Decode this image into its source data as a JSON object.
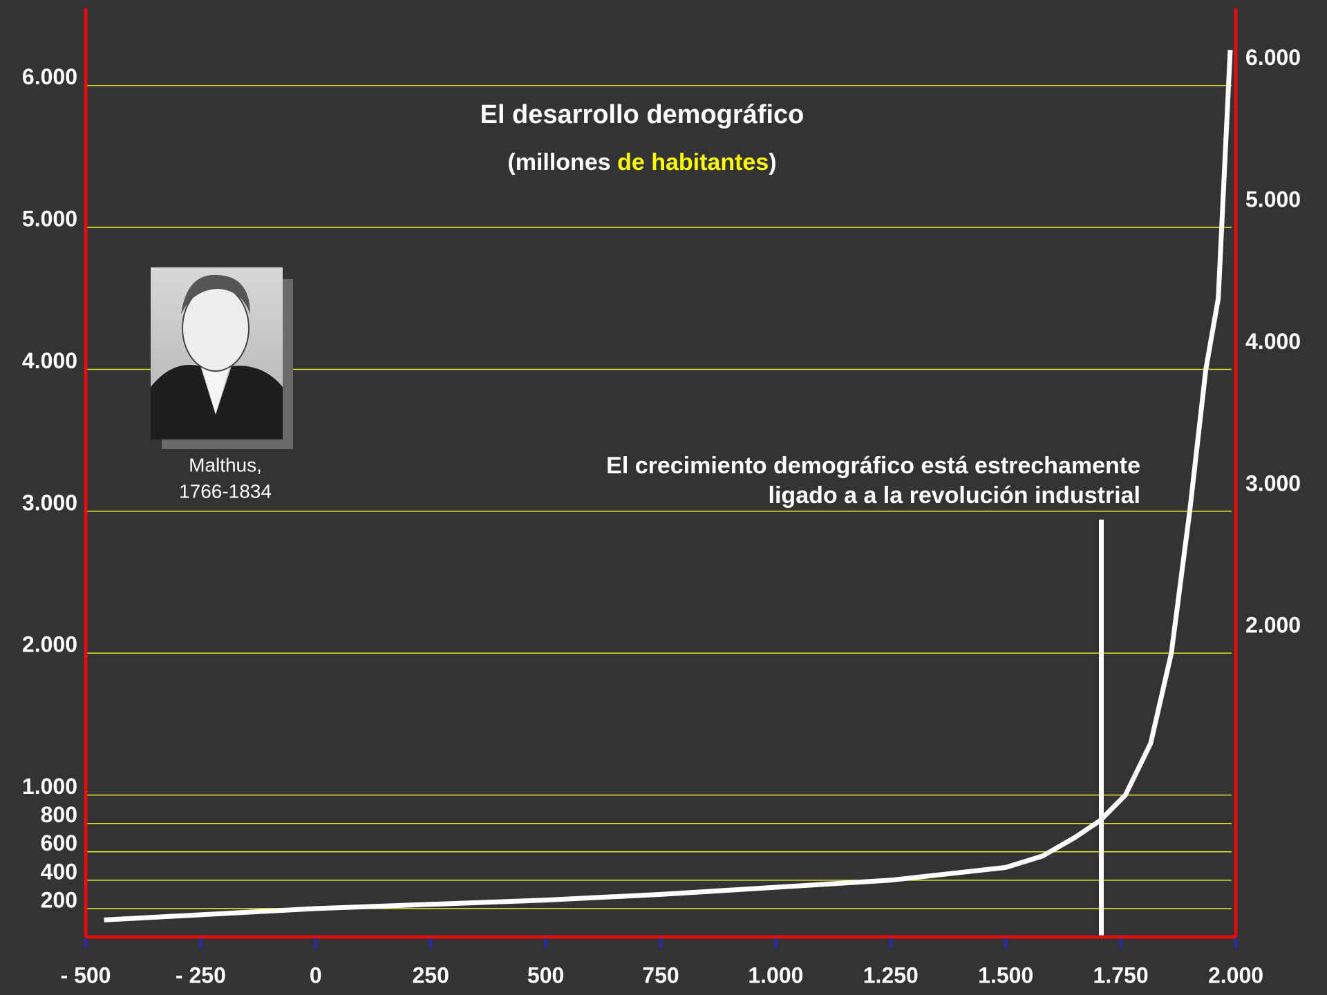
{
  "chart_data": {
    "type": "line",
    "title": "El desarrollo demográfico",
    "subtitle": [
      "(millones ",
      "de habitantes",
      ")"
    ],
    "annotation": [
      "El crecimiento demográfico está estrechamente",
      "ligado a a la revolución industrial"
    ],
    "caption": [
      "Malthus,",
      "1766-1834"
    ],
    "x": [
      -460,
      0,
      250,
      500,
      750,
      1000,
      1250,
      1500,
      1580,
      1650,
      1705,
      1760,
      1815,
      1860,
      1900,
      1935,
      1962,
      1988
    ],
    "values": [
      120,
      200,
      230,
      260,
      300,
      350,
      400,
      490,
      570,
      700,
      820,
      1000,
      1365,
      2000,
      3000,
      4000,
      4500,
      6250
    ],
    "color": "#ffffff",
    "xlim": [
      -500,
      2000
    ],
    "xticks": [
      {
        "value": -500,
        "label": "- 500"
      },
      {
        "value": -250,
        "label": "- 250"
      },
      0,
      250,
      500,
      750,
      {
        "value": 1000,
        "label": "1.000"
      },
      {
        "value": 1250,
        "label": "1.250"
      },
      {
        "value": 1500,
        "label": "1.500"
      },
      {
        "value": 1750,
        "label": "1.750"
      },
      {
        "value": 2000,
        "label": "2.000"
      }
    ],
    "ylim": [
      0,
      6500
    ],
    "yticks": [
      200,
      400,
      600,
      800,
      {
        "value": 1000,
        "label": "1.000"
      },
      {
        "value": 2000,
        "label": "2.000"
      },
      {
        "value": 3000,
        "label": "3.000"
      },
      {
        "value": 4000,
        "label": "4.000"
      },
      {
        "value": 5000,
        "label": "5.000"
      },
      {
        "value": 6000,
        "label": "6.000"
      }
    ],
    "y2lim": [
      0,
      6500
    ],
    "y2ticks": [
      {
        "value": 2000,
        "label": "2.000"
      },
      {
        "value": 3000,
        "label": "3.000"
      },
      {
        "value": 4000,
        "label": "4.000"
      },
      {
        "value": 5000,
        "label": "5.000"
      },
      {
        "value": 6000,
        "label": "6.000"
      }
    ],
    "grid": true,
    "grid_color": "#e6e62e",
    "axis_color": "#e01010",
    "tick_color": "#2b2ba0"
  }
}
